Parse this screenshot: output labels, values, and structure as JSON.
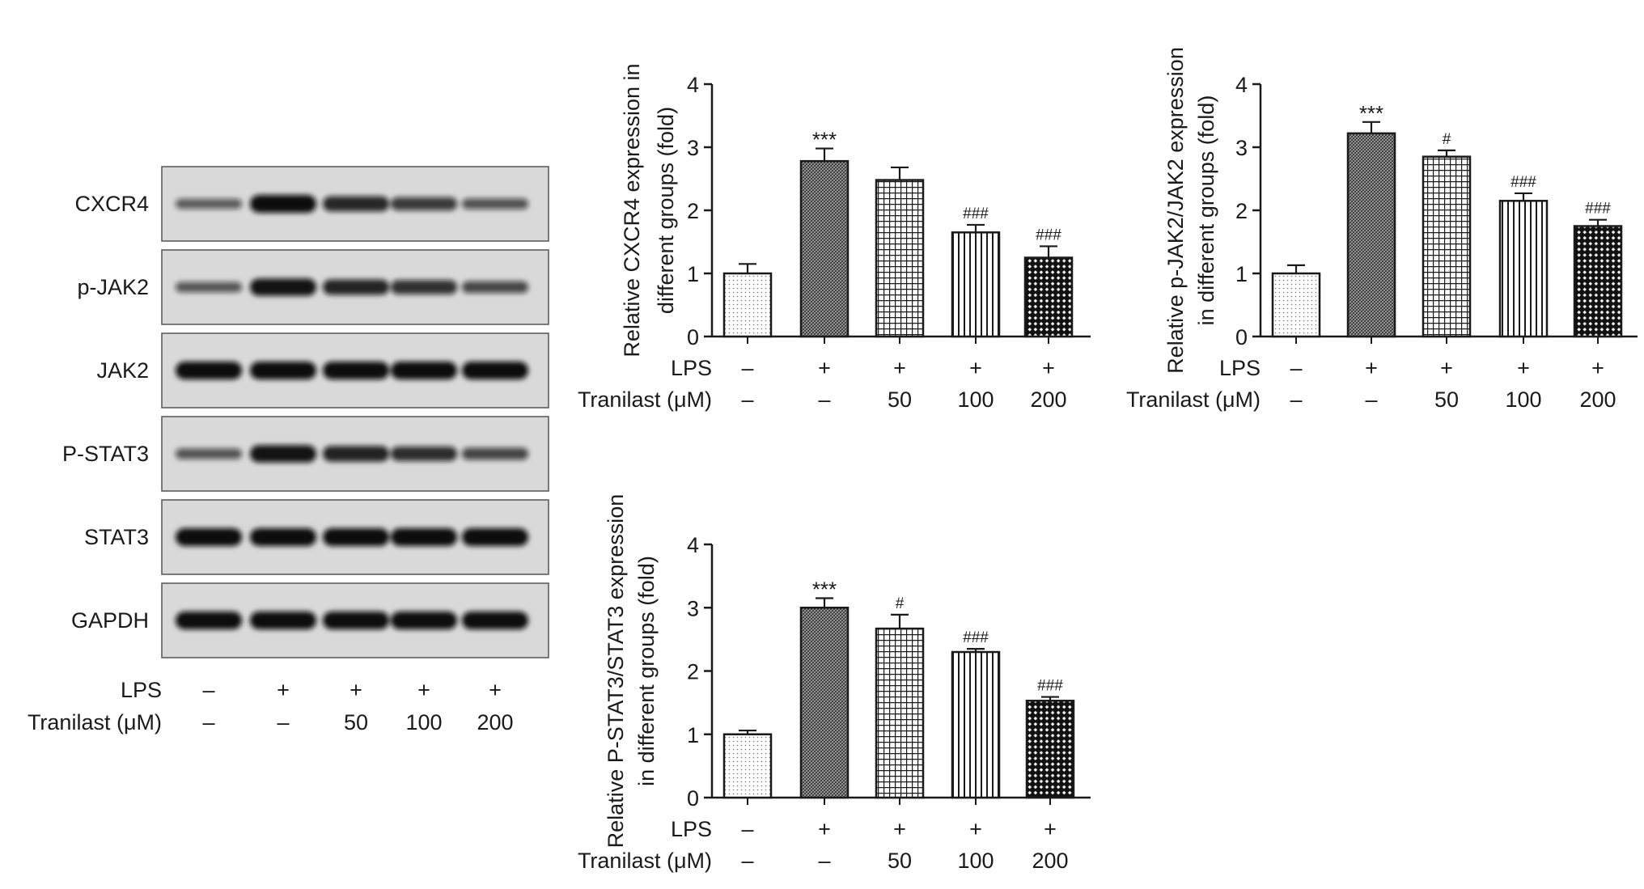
{
  "blot": {
    "rows": [
      "CXCR4",
      "p-JAK2",
      "JAK2",
      "P-STAT3",
      "STAT3",
      "GAPDH"
    ],
    "lane_intensity": [
      [
        0.35,
        1.0,
        0.78,
        0.62,
        0.42
      ],
      [
        0.38,
        0.95,
        0.8,
        0.7,
        0.5
      ],
      [
        1.0,
        1.0,
        1.0,
        1.0,
        1.0
      ],
      [
        0.4,
        0.95,
        0.82,
        0.72,
        0.52
      ],
      [
        1.0,
        1.0,
        1.0,
        1.0,
        1.0
      ],
      [
        1.0,
        1.0,
        1.0,
        1.0,
        1.0
      ]
    ],
    "treatment": {
      "lps_label": "LPS",
      "tranilast_label": "Tranilast (μM)",
      "lps": [
        "–",
        "+",
        "+",
        "+",
        "+"
      ],
      "tranilast": [
        "–",
        "–",
        "50",
        "100",
        "200"
      ]
    }
  },
  "chart_data": [
    {
      "type": "bar",
      "ylabel": "Relative CXCR4 expression in different groups (fold)",
      "ylabel_lines": [
        "Relative CXCR4 expression in",
        "different groups (fold)"
      ],
      "ylim": [
        0,
        4
      ],
      "yticks": [
        "0",
        "1",
        "2",
        "3",
        "4"
      ],
      "values": [
        1.0,
        2.78,
        2.48,
        1.65,
        1.25
      ],
      "errors": [
        0.15,
        0.2,
        0.2,
        0.12,
        0.18
      ],
      "significance": [
        "",
        "***",
        "",
        "###",
        "###"
      ],
      "lps_label": "LPS",
      "tranilast_label": "Tranilast (μM)",
      "lps": [
        "–",
        "+",
        "+",
        "+",
        "+"
      ],
      "tranilast": [
        "–",
        "–",
        "50",
        "100",
        "200"
      ]
    },
    {
      "type": "bar",
      "ylabel": "Relative p-JAK2/JAK2 expression in different groups (fold)",
      "ylabel_lines": [
        "Relative p-JAK2/JAK2 expression",
        "in different groups (fold)"
      ],
      "ylim": [
        0,
        4
      ],
      "yticks": [
        "0",
        "1",
        "2",
        "3",
        "4"
      ],
      "values": [
        1.0,
        3.22,
        2.85,
        2.15,
        1.75
      ],
      "errors": [
        0.13,
        0.18,
        0.1,
        0.12,
        0.1
      ],
      "significance": [
        "",
        "***",
        "#",
        "###",
        "###"
      ],
      "lps_label": "LPS",
      "tranilast_label": "Tranilast (μM)",
      "lps": [
        "–",
        "+",
        "+",
        "+",
        "+"
      ],
      "tranilast": [
        "–",
        "–",
        "50",
        "100",
        "200"
      ]
    },
    {
      "type": "bar",
      "ylabel": "Relative P-STAT3/STAT3 expression in different groups (fold)",
      "ylabel_lines": [
        "Relative P-STAT3/STAT3 expression",
        "in different groups (fold)"
      ],
      "ylim": [
        0,
        4
      ],
      "yticks": [
        "0",
        "1",
        "2",
        "3",
        "4"
      ],
      "values": [
        1.0,
        3.0,
        2.67,
        2.3,
        1.53
      ],
      "errors": [
        0.06,
        0.15,
        0.22,
        0.05,
        0.06
      ],
      "significance": [
        "",
        "***",
        "#",
        "###",
        "###"
      ],
      "lps_label": "LPS",
      "tranilast_label": "Tranilast (μM)",
      "lps": [
        "–",
        "+",
        "+",
        "+",
        "+"
      ],
      "tranilast": [
        "–",
        "–",
        "50",
        "100",
        "200"
      ]
    }
  ],
  "colors": {
    "ink": "#1a1a1a",
    "blot_background": "#d9d9d9",
    "blot_band": "#111111",
    "bar_fill": "#ffffff"
  },
  "patterns": [
    "dots-icon",
    "dense-crosshatch-icon",
    "grid-icon",
    "vertical-lines-icon",
    "diamond-checker-icon"
  ]
}
